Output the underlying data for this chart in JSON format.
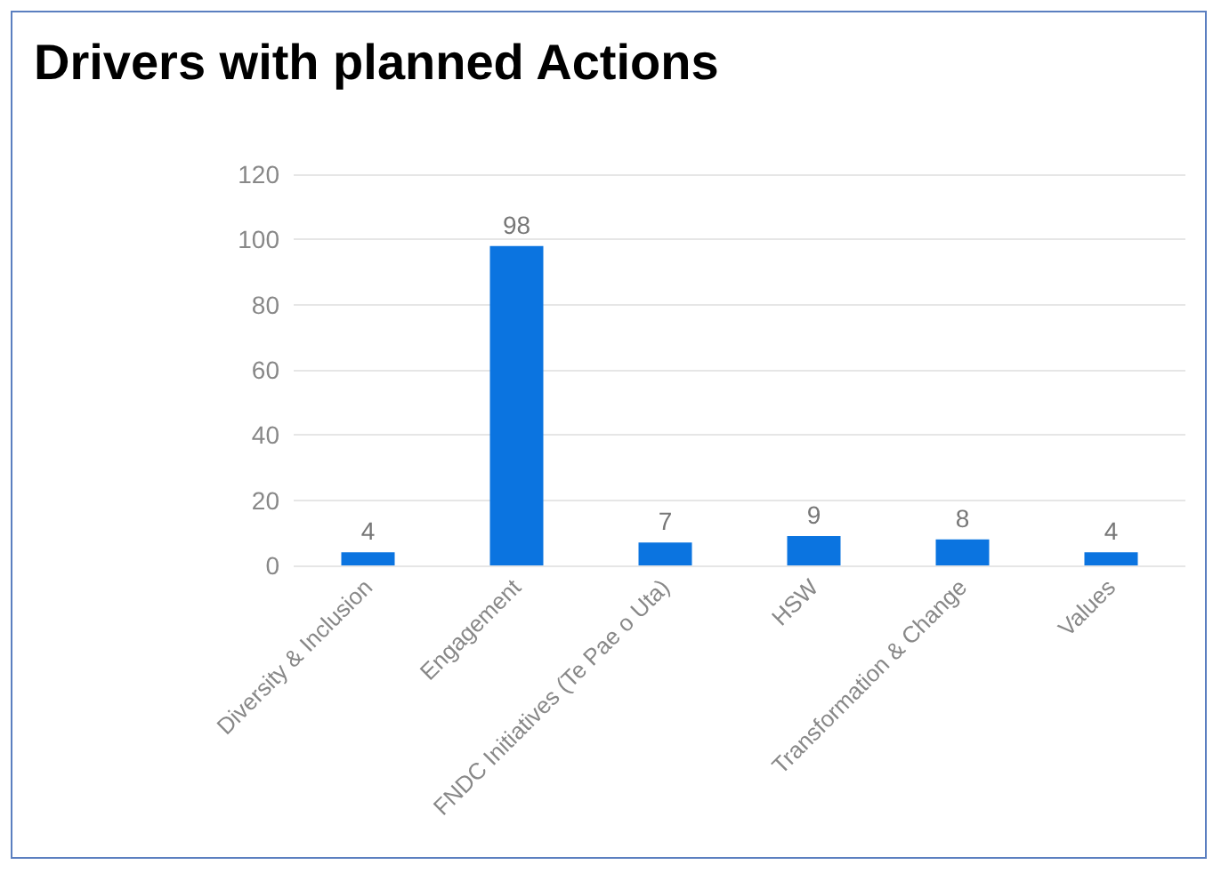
{
  "chart_data": {
    "type": "bar",
    "title": "Drivers with planned Actions",
    "categories": [
      "Diversity & Inclusion",
      "Engagement",
      "FNDC Initiatives (Te Pae o Uta)",
      "HSW",
      "Transformation & Change",
      "Values"
    ],
    "values": [
      4,
      98,
      7,
      9,
      8,
      4
    ],
    "color": "#0b74e0",
    "ylim": [
      0,
      120
    ],
    "yticks": [
      0,
      20,
      40,
      60,
      80,
      100,
      120
    ],
    "grid": "y",
    "data_labels": true
  }
}
